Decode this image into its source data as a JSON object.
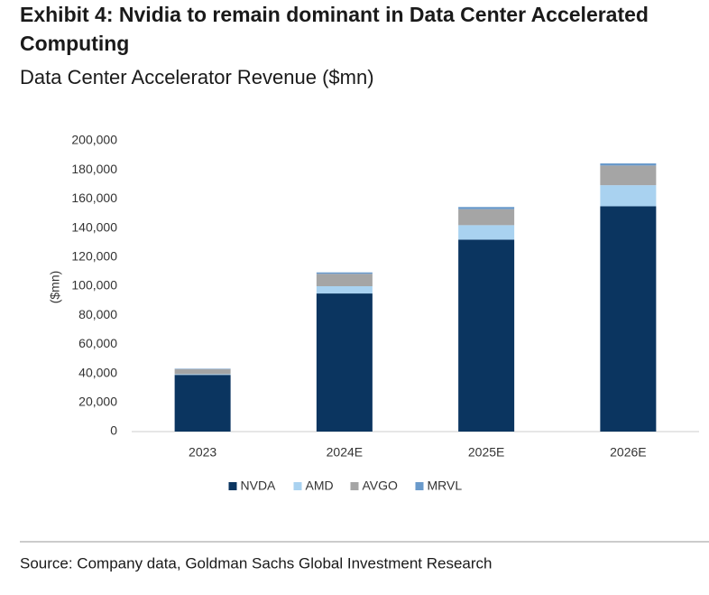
{
  "chart_data": {
    "type": "stacked_bar",
    "title": [
      "Exhibit 4: Nvidia to remain dominant in Data Center Accelerated",
      "Computing"
    ],
    "subtitle": "Data Center Accelerator Revenue ($mn)",
    "y_label": "($mn)",
    "source": "Source: Company data, Goldman Sachs Global Investment Research",
    "categories": [
      "2023",
      "2024E",
      "2025E",
      "2026E"
    ],
    "series": [
      {
        "name": "NVDA",
        "color": "#0b3560",
        "values": [
          39000,
          95000,
          132000,
          155000
        ]
      },
      {
        "name": "AMD",
        "color": "#a9d2f0",
        "values": [
          500,
          5000,
          10000,
          14500
        ]
      },
      {
        "name": "AVGO",
        "color": "#a5a5a5",
        "values": [
          3500,
          8500,
          11000,
          13500
        ]
      },
      {
        "name": "MRVL",
        "color": "#6a9acb",
        "values": [
          300,
          1000,
          1500,
          1500
        ]
      }
    ],
    "ylim": [
      0,
      200000
    ],
    "yticks": [
      0,
      {
        "value": 20000,
        "label": "20,000"
      },
      {
        "value": 40000,
        "label": "40,000"
      },
      {
        "value": 60000,
        "label": "60,000"
      },
      {
        "value": 80000,
        "label": "80,000"
      },
      {
        "value": 100000,
        "label": "100,000"
      },
      {
        "value": 120000,
        "label": "120,000"
      },
      {
        "value": 140000,
        "label": "140,000"
      },
      {
        "value": 160000,
        "label": "160,000"
      },
      {
        "value": 180000,
        "label": "180,000"
      },
      {
        "value": 200000,
        "label": "200,000"
      }
    ],
    "legend": "bottom"
  }
}
